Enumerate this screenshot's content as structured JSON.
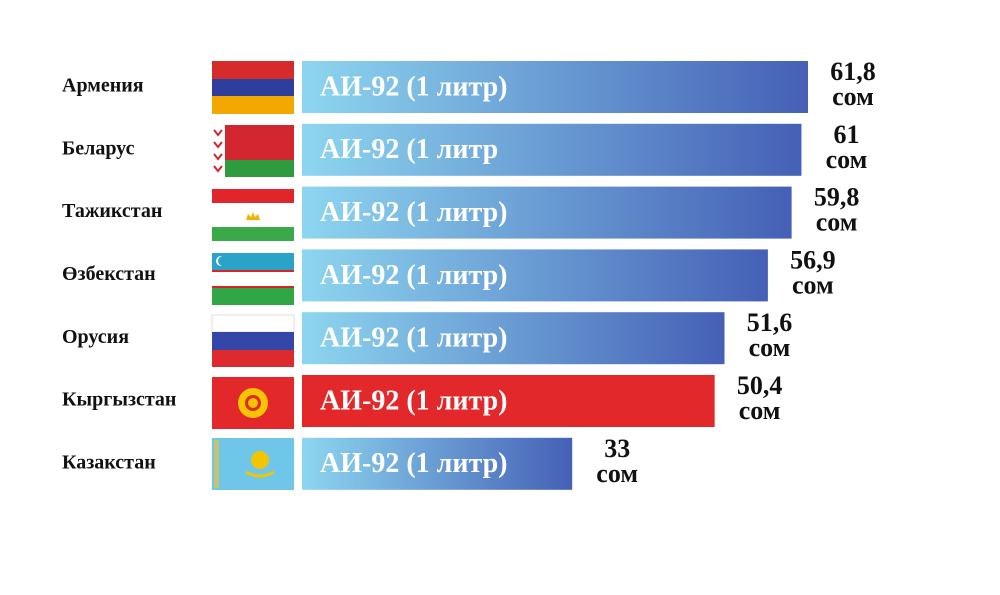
{
  "chart_data": {
    "type": "bar",
    "categories": [
      "Армения",
      "Беларус",
      "Тажикстан",
      "Өзбекстан",
      "Орусия",
      "Кыргызстан",
      "Казакстан"
    ],
    "values": [
      61.8,
      61,
      59.8,
      56.9,
      51.6,
      50.4,
      33
    ],
    "value_labels": [
      "61,8",
      "61",
      "59,8",
      "56,9",
      "51,6",
      "50,4",
      "33"
    ],
    "unit": "сом",
    "bar_labels": [
      "АИ-92 (1 литр)",
      "АИ-92 (1 литр",
      "АИ-92 (1 литр)",
      "АИ-92 (1 литр)",
      "АИ-92 (1 литр)",
      "АИ-92 (1 литр)",
      "АИ-92 (1 литр)"
    ],
    "bar_colors": [
      [
        "#8dd6f0",
        "#4560b6"
      ],
      [
        "#8dd6f0",
        "#4560b6"
      ],
      [
        "#8dd6f0",
        "#4560b6"
      ],
      [
        "#8dd6f0",
        "#4560b6"
      ],
      [
        "#8dd6f0",
        "#4560b6"
      ],
      [
        "#e3282b",
        "#e3282b"
      ],
      [
        "#8dd6f0",
        "#4560b6"
      ]
    ]
  }
}
